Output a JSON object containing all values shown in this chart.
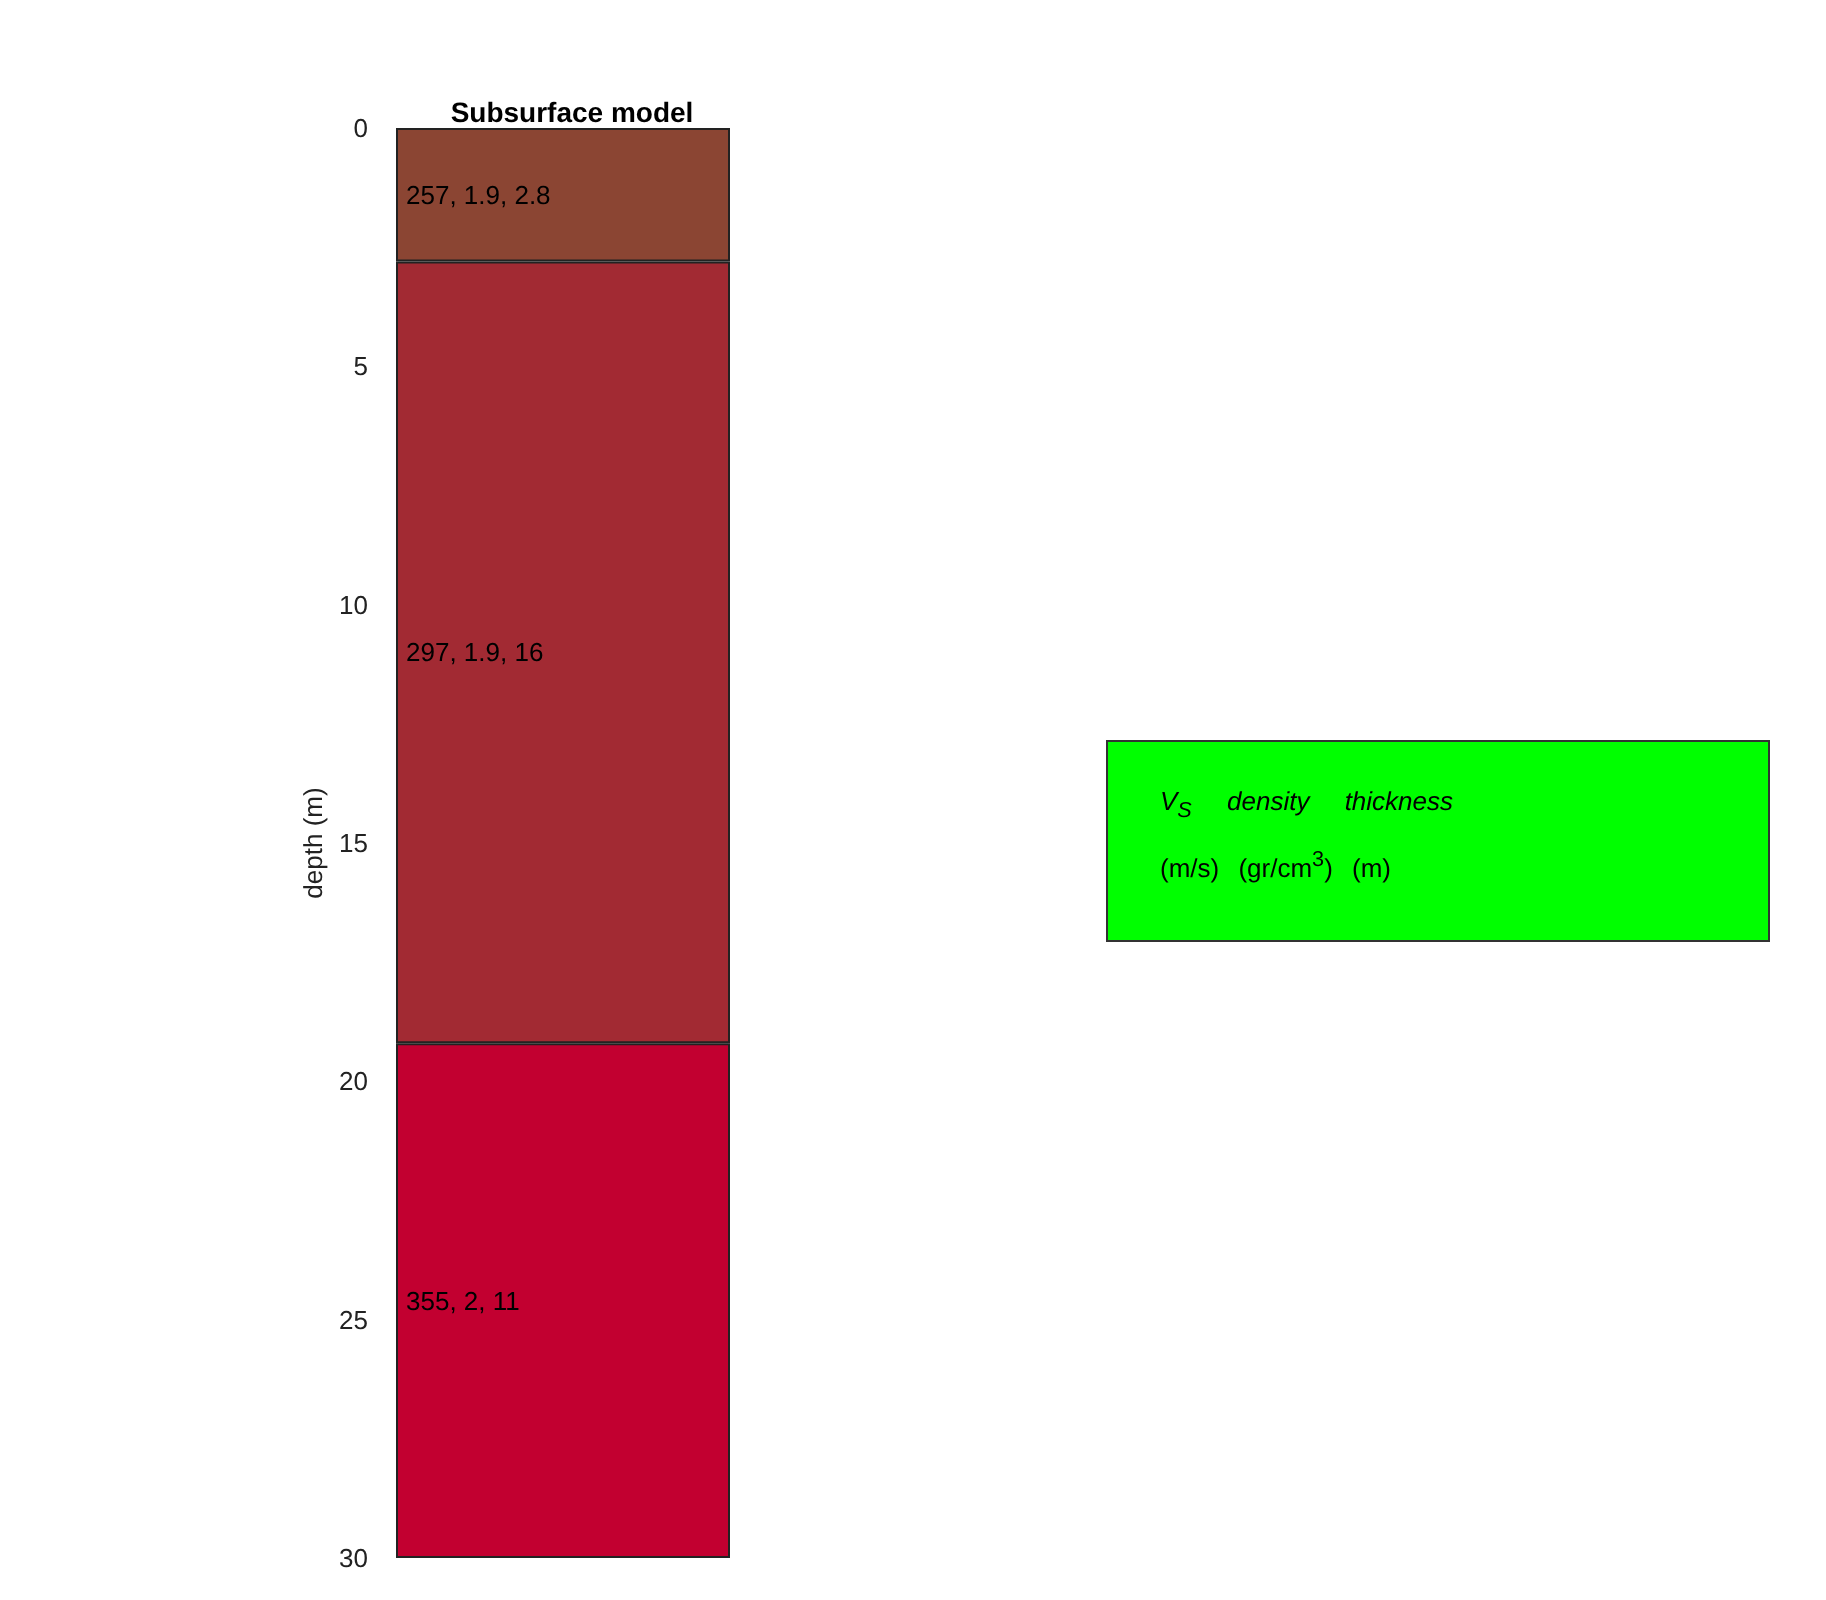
{
  "chart_data": {
    "type": "bar",
    "title": "Subsurface model",
    "ylabel": "depth (m)",
    "categories": [
      null
    ],
    "stacked": true,
    "ylim": [
      30,
      0
    ],
    "yticks": [
      0,
      5,
      10,
      15,
      20,
      25,
      30
    ],
    "tick_labels": "y",
    "grid": false,
    "series": [
      {
        "color": "#8b4533",
        "values": [
          2.8
        ],
        "value_labels": [
          "257, 1.9, 2.8"
        ]
      },
      {
        "color": "#a22a33",
        "values": [
          16.4
        ],
        "value_labels": [
          "297, 1.9, 16"
        ]
      },
      {
        "color": "#c20030",
        "values": [
          10.8
        ],
        "value_labels": [
          "355, 2, 11"
        ]
      }
    ],
    "annotations": [
      "V$_{S}$ density thickness",
      "(m/s) (gr/cm$^{3}$) (m)"
    ]
  }
}
